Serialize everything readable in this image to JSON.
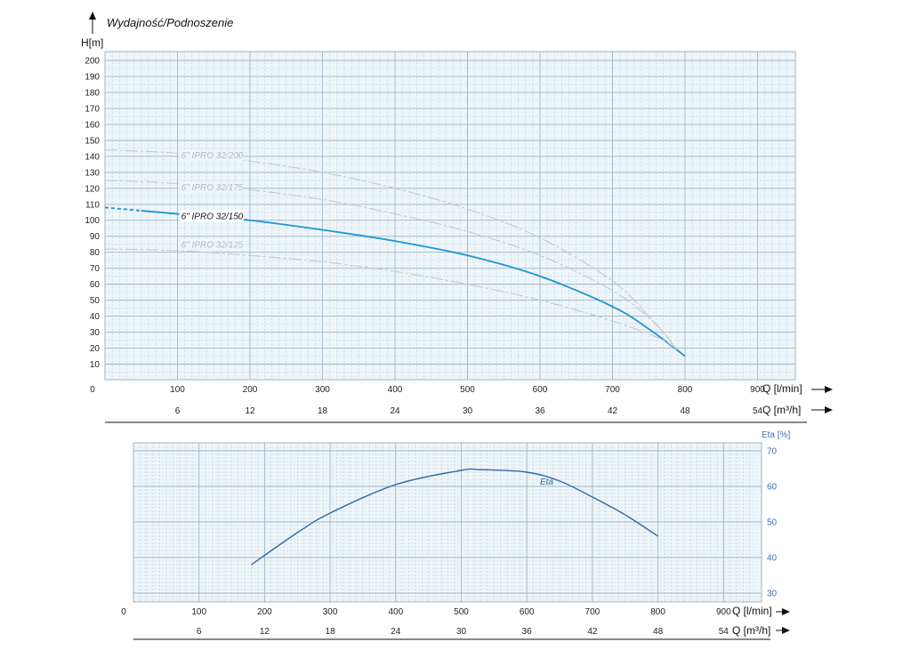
{
  "chart_data": [
    {
      "type": "line",
      "title": "Wydajność/Podnoszenie",
      "ylabel": "H[m]",
      "xlabel": "Q [l/min]",
      "x2label": "Q [m³/h]",
      "xlim": [
        0,
        950
      ],
      "ylim": [
        0,
        210
      ],
      "xticks": [
        0,
        100,
        200,
        300,
        400,
        500,
        600,
        700,
        800,
        900
      ],
      "x2ticks": [
        6,
        12,
        18,
        24,
        30,
        36,
        42,
        48,
        54
      ],
      "x2tick_positions": [
        100,
        200,
        300,
        400,
        500,
        600,
        700,
        800,
        900
      ],
      "yticks": [
        10,
        20,
        30,
        40,
        50,
        60,
        70,
        80,
        90,
        100,
        110,
        120,
        130,
        140,
        150,
        160,
        170,
        180,
        190,
        200
      ],
      "grid": true,
      "series": [
        {
          "name": "6\" IPRO 32/200",
          "color": "#c8c8c8",
          "label_at": [
            110,
            141
          ],
          "x": [
            0,
            100,
            200,
            300,
            400,
            500,
            600,
            700,
            760,
            790
          ],
          "y": [
            144,
            142,
            137,
            130,
            120,
            107,
            89,
            62,
            35,
            18
          ]
        },
        {
          "name": "6\" IPRO 32/175",
          "color": "#c8c8c8",
          "label_at": [
            110,
            121
          ],
          "x": [
            0,
            100,
            200,
            300,
            400,
            500,
            600,
            700,
            760,
            790
          ],
          "y": [
            125,
            123,
            119,
            113,
            104,
            93,
            78,
            56,
            35,
            18
          ]
        },
        {
          "name": "6\" IPRO 32/150",
          "color": "#1d96d4",
          "highlight": true,
          "dashed_until": 50,
          "label_at": [
            110,
            103
          ],
          "x": [
            0,
            50,
            100,
            200,
            300,
            400,
            500,
            600,
            700,
            750,
            800
          ],
          "y": [
            108,
            106,
            104,
            100,
            94,
            87,
            78,
            65,
            46,
            32,
            15
          ]
        },
        {
          "name": "6\" IPRO 32/125",
          "color": "#c8c8c8",
          "label_at": [
            110,
            85
          ],
          "x": [
            0,
            100,
            200,
            300,
            400,
            500,
            600,
            700,
            770,
            790
          ],
          "y": [
            82,
            81,
            78,
            74,
            68,
            60,
            50,
            37,
            25,
            18
          ]
        }
      ]
    },
    {
      "type": "line",
      "ylabel": "Eta [%]",
      "xlabel": "Q [l/min]",
      "x2label": "Q [m³/h]",
      "xlim": [
        0,
        950
      ],
      "ylim": [
        28,
        71
      ],
      "xticks": [
        0,
        100,
        200,
        300,
        400,
        500,
        600,
        700,
        800,
        900
      ],
      "x2ticks": [
        6,
        12,
        18,
        24,
        30,
        36,
        42,
        48,
        54
      ],
      "x2tick_positions": [
        100,
        200,
        300,
        400,
        500,
        600,
        700,
        800,
        900
      ],
      "yticks": [
        30,
        40,
        50,
        60,
        70
      ],
      "grid": true,
      "series": [
        {
          "name": "Eta",
          "color": "#2f6aa8",
          "label_at": [
            620,
            61.5
          ],
          "x": [
            180,
            250,
            300,
            400,
            500,
            530,
            600,
            650,
            700,
            750,
            800
          ],
          "y": [
            38,
            47,
            52.5,
            60.5,
            64.5,
            64.7,
            64,
            61.5,
            57,
            52,
            46
          ]
        }
      ]
    }
  ]
}
